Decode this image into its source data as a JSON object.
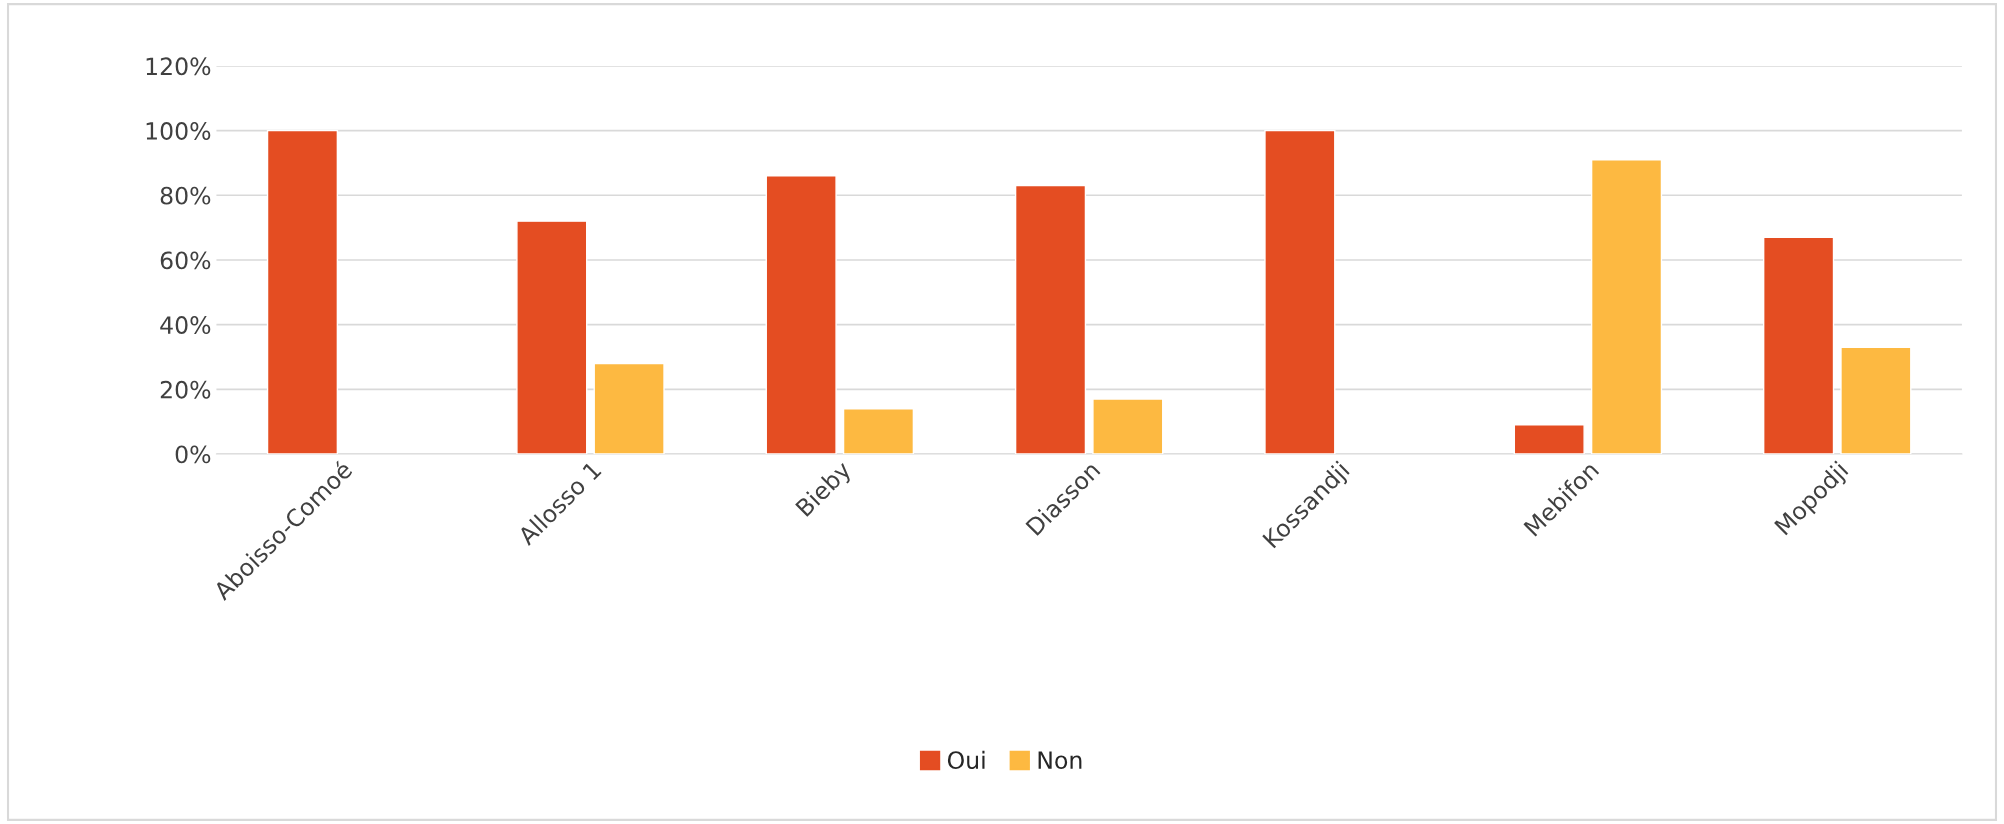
{
  "chart_data": {
    "type": "bar",
    "categories": [
      "Aboisso-Comoé",
      "Allosso 1",
      "Bieby",
      "Diasson",
      "Kossandji",
      "Mebifon",
      "Mopodji"
    ],
    "series": [
      {
        "name": "Oui",
        "color": "#e44d22",
        "values": [
          100,
          72,
          86,
          83,
          100,
          9,
          67
        ]
      },
      {
        "name": "Non",
        "color": "#fdb941",
        "values": [
          null,
          28,
          14,
          17,
          null,
          91,
          33
        ]
      }
    ],
    "ylim": [
      0,
      120
    ],
    "yticks": [
      {
        "value": 0,
        "label": "0%"
      },
      {
        "value": 20,
        "label": "20%"
      },
      {
        "value": 40,
        "label": "40%"
      },
      {
        "value": 60,
        "label": "60%"
      },
      {
        "value": 80,
        "label": "80%"
      },
      {
        "value": 100,
        "label": "100%"
      },
      {
        "value": 120,
        "label": "120%"
      }
    ],
    "grid": "y",
    "legend": "bottom"
  }
}
